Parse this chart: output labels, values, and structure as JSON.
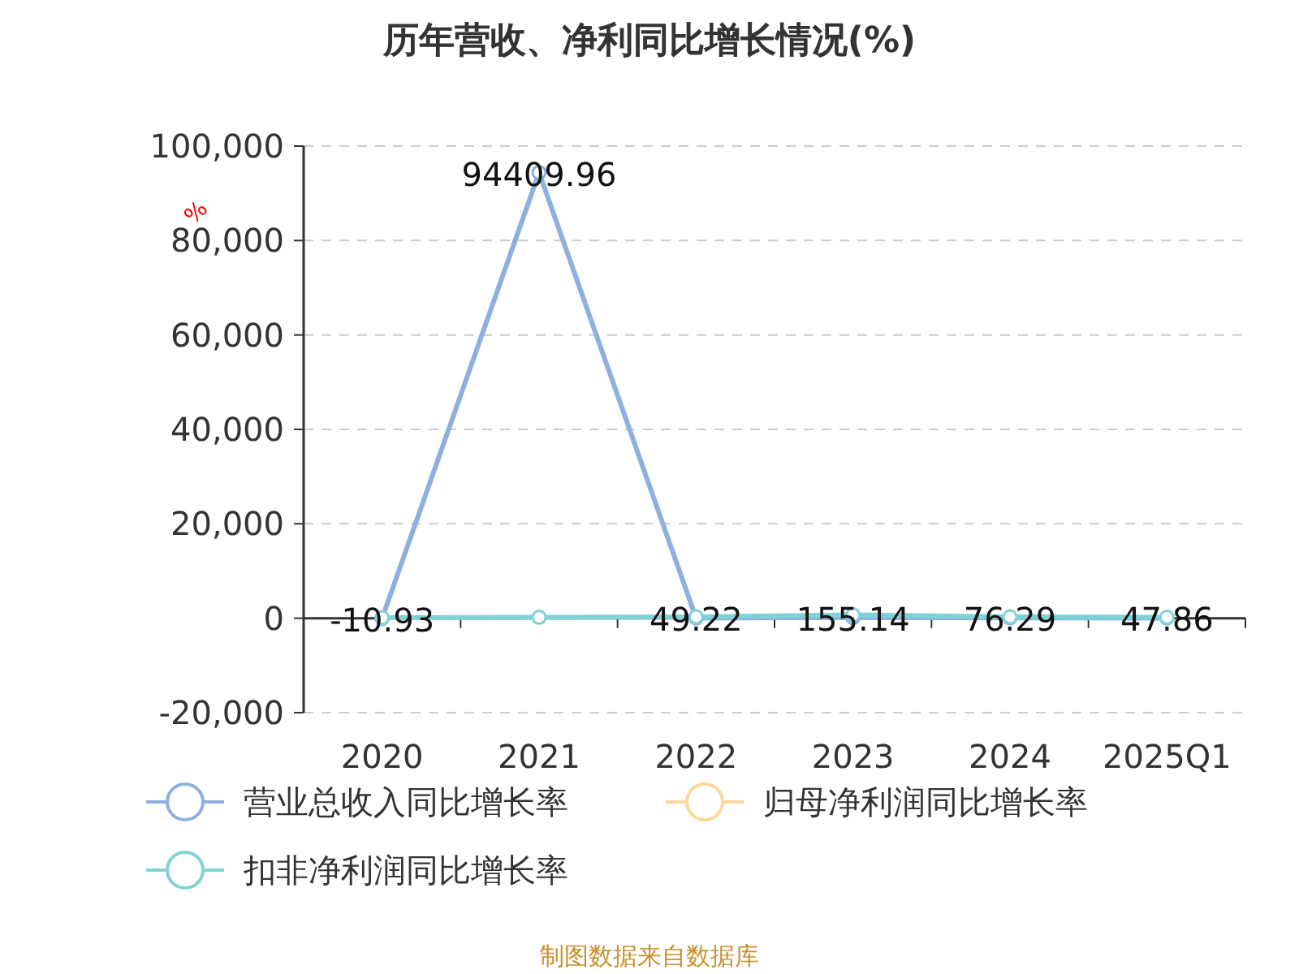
{
  "chart_data": {
    "type": "line",
    "title": "历年营收、净利同比增长情况(%)",
    "ylabel": "%",
    "categories": [
      "2020",
      "2021",
      "2022",
      "2023",
      "2024",
      "2025Q1"
    ],
    "series": [
      {
        "name": "营业总收入同比增长率",
        "color": "#8eb0de",
        "values": [
          -10.93,
          94409.96,
          49.22,
          155.14,
          76.29,
          47.86
        ],
        "value_labels": [
          "-10.93",
          "94409.96",
          "49.22",
          "155.14",
          "76.29",
          "47.86"
        ]
      },
      {
        "name": "归母净利润同比增长率",
        "color": "#fcd89a",
        "values": [
          null,
          null,
          null,
          null,
          null,
          null
        ]
      },
      {
        "name": "扣非净利润同比增长率",
        "color": "#7fd3d8",
        "values": [
          100,
          200,
          300,
          700,
          300,
          200
        ]
      }
    ],
    "ylim": [
      -20000,
      100000
    ],
    "yticks": [
      {
        "value": -20000,
        "label": "-20,000"
      },
      {
        "value": 0,
        "label": "0"
      },
      {
        "value": 20000,
        "label": "20,000"
      },
      {
        "value": 40000,
        "label": "40,000"
      },
      {
        "value": 60000,
        "label": "60,000"
      },
      {
        "value": 80000,
        "label": "80,000"
      },
      {
        "value": 100000,
        "label": "100,000"
      }
    ],
    "grid": "y",
    "legend": "bottom",
    "marker": "circle",
    "line_style": "solid",
    "annotations": [
      "制图数据来自数据库"
    ]
  }
}
